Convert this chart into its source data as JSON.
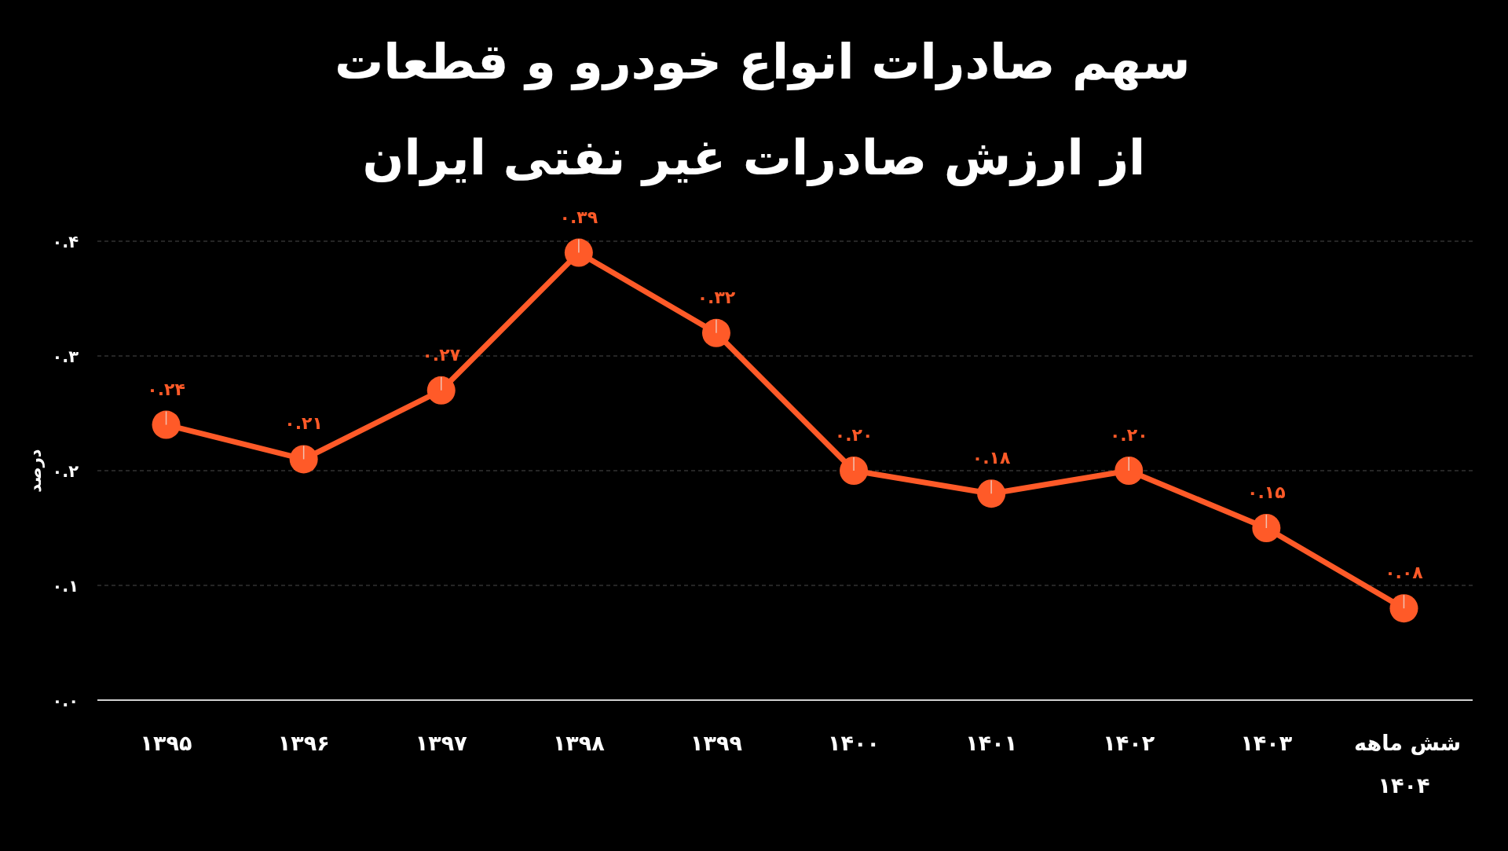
{
  "chart_data": {
    "type": "line",
    "title": "سهم صادرات انواع خودرو و قطعات از ارزش صادرات غیر نفتی ایران",
    "ylabel": "درصد",
    "categories": [
      "۱۳۹۵",
      "۱۳۹۶",
      "۱۳۹۷",
      "۱۳۹۸",
      "۱۳۹۹",
      "۱۴۰۰",
      "۱۴۰۱",
      "۱۴۰۲",
      "۱۴۰۳",
      "شش ماهه ۱۴۰۴"
    ],
    "values": [
      0.24,
      0.21,
      0.27,
      0.39,
      0.32,
      0.2,
      0.18,
      0.2,
      0.15,
      0.08
    ],
    "value_labels": [
      "۰.۲۴",
      "۰.۲۱",
      "۰.۲۷",
      "۰.۳۹",
      "۰.۳۲",
      "۰.۲۰",
      "۰.۱۸",
      "۰.۲۰",
      "۰.۱۵",
      "۰.۰۸"
    ],
    "color": "#ff5a28",
    "ylim": [
      0,
      0.4
    ],
    "yticks": [
      {
        "value": 0,
        "label": "۰.۰"
      },
      {
        "value": 0.1,
        "label": "۰.۱"
      },
      {
        "value": 0.2,
        "label": "۰.۲"
      },
      {
        "value": 0.3,
        "label": "۰.۳"
      },
      {
        "value": 0.4,
        "label": "۰.۴"
      }
    ],
    "grid": "y",
    "marker": "circle",
    "line_style": "solid"
  }
}
